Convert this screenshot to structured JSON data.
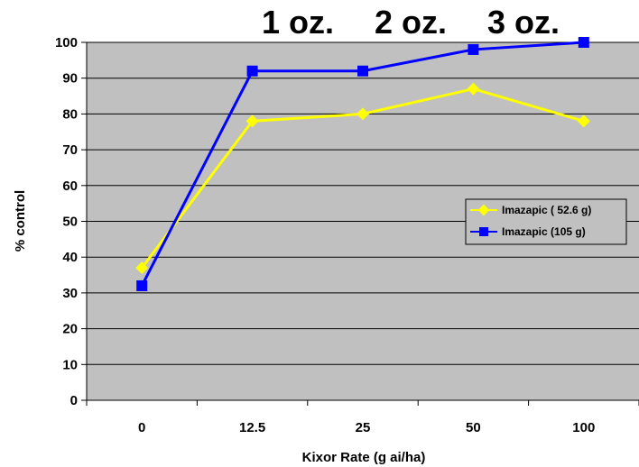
{
  "chart_data": {
    "type": "line",
    "title": "",
    "xlabel": "Kixor Rate (g ai/ha)",
    "ylabel": "% control",
    "categories": [
      "0",
      "12.5",
      "25",
      "50",
      "100"
    ],
    "ylim": [
      0,
      100
    ],
    "yticks": [
      "0",
      "10",
      "20",
      "30",
      "40",
      "50",
      "60",
      "70",
      "80",
      "90",
      "100"
    ],
    "grid": true,
    "legend_position": "right",
    "plot_background": "#c0c0c0",
    "series": [
      {
        "name": "Imazapic ( 52.6 g)",
        "color": "#ffff00",
        "marker": "diamond",
        "values": [
          37,
          78,
          80,
          87,
          78
        ]
      },
      {
        "name": "Imazapic (105 g)",
        "color": "#0000ff",
        "marker": "square",
        "values": [
          32,
          92,
          92,
          98,
          100
        ]
      }
    ],
    "annotations": [
      "1 oz.",
      "2 oz.",
      "3 oz."
    ]
  }
}
